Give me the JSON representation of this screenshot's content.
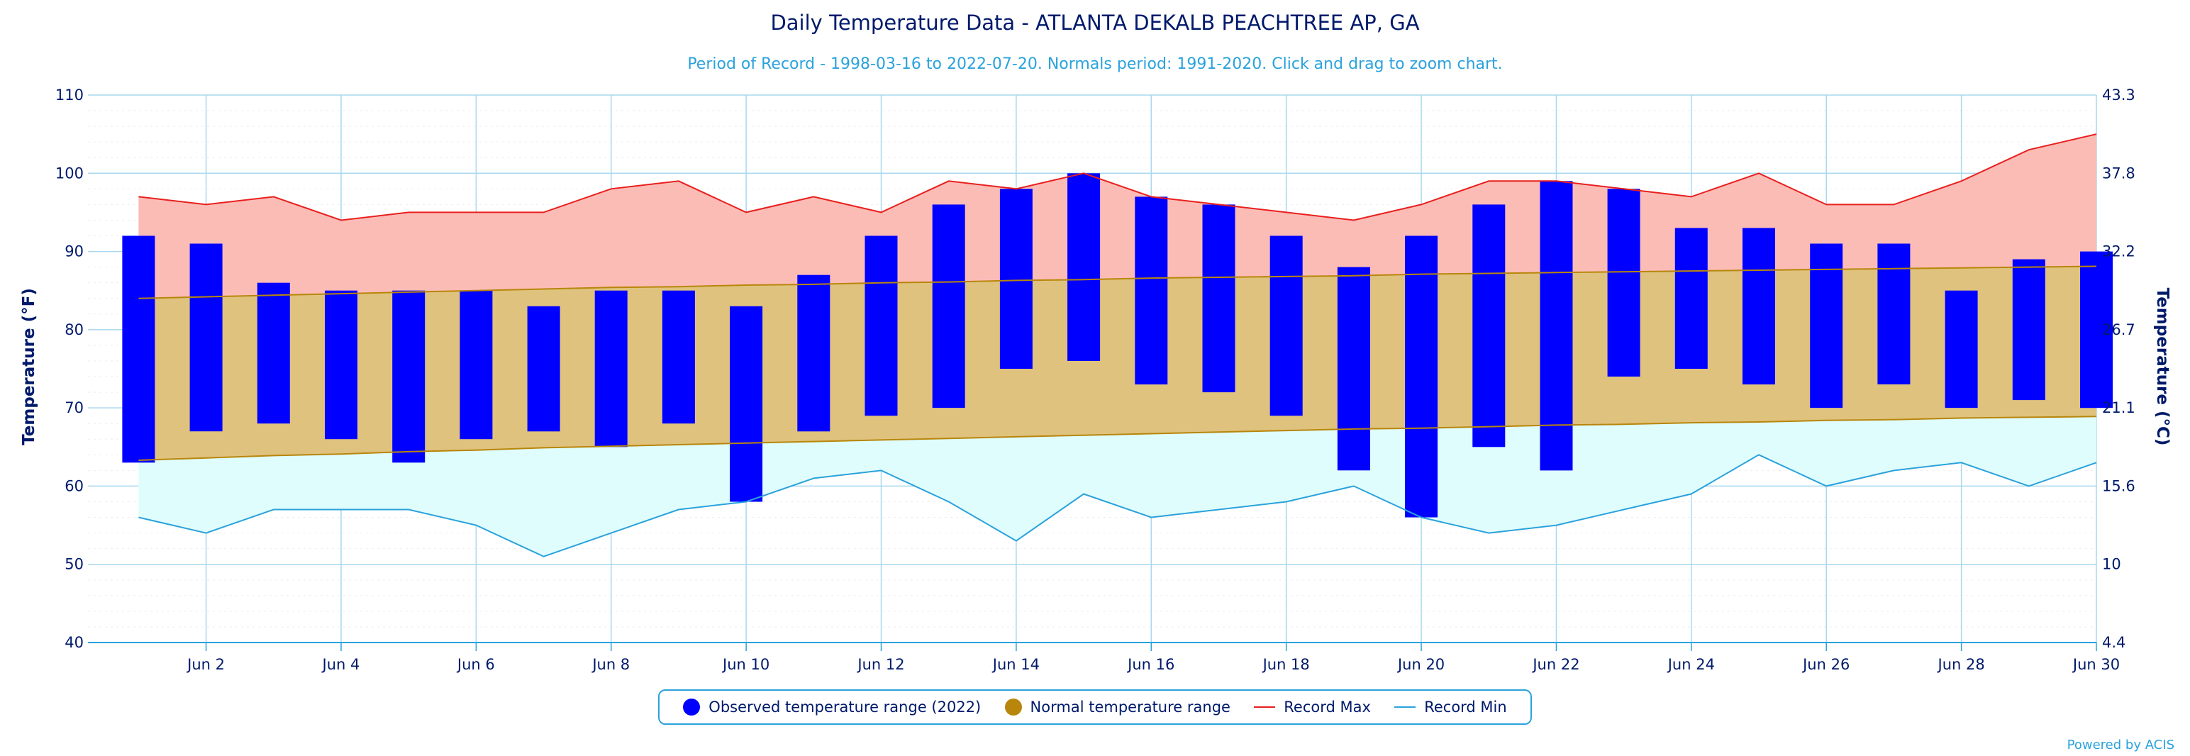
{
  "chart_data": {
    "type": "bar",
    "title": "Daily Temperature Data - ATLANTA DEKALB PEACHTREE AP, GA",
    "subtitle": "Period of Record - 1998-03-16 to 2022-07-20. Normals period: 1991-2020. Click and drag to zoom chart.",
    "ylabel": "Temperature (°F)",
    "ylabel_right": "Temperature (°C)",
    "ylim": [
      40,
      110
    ],
    "y_ticks": [
      "40",
      "50",
      "60",
      "70",
      "80",
      "90",
      "100",
      "110"
    ],
    "y_ticks_right": [
      "4.4",
      "10",
      "15.6",
      "21.1",
      "26.7",
      "32.2",
      "37.8",
      "43.3"
    ],
    "x_days": [
      1,
      2,
      3,
      4,
      5,
      6,
      7,
      8,
      9,
      10,
      11,
      12,
      13,
      14,
      15,
      16,
      17,
      18,
      19,
      20,
      21,
      22,
      23,
      24,
      25,
      26,
      27,
      28,
      29,
      30
    ],
    "x_tick_labels": [
      "Jun 2",
      "Jun 4",
      "Jun 6",
      "Jun 8",
      "Jun 10",
      "Jun 12",
      "Jun 14",
      "Jun 16",
      "Jun 18",
      "Jun 20",
      "Jun 22",
      "Jun 24",
      "Jun 26",
      "Jun 28",
      "Jun 30"
    ],
    "grid": true,
    "legend_position": "bottom",
    "series": [
      {
        "name": "Observed temperature range (2022)",
        "color": "#0000ff",
        "low": [
          63,
          67,
          68,
          66,
          63,
          66,
          67,
          65,
          68,
          58,
          67,
          69,
          70,
          75,
          76,
          73,
          72,
          69,
          62,
          56,
          65,
          62,
          74,
          75,
          73,
          70,
          73,
          70,
          71,
          70
        ],
        "high": [
          92,
          91,
          86,
          85,
          85,
          85,
          83,
          85,
          85,
          83,
          87,
          92,
          96,
          98,
          100,
          97,
          96,
          92,
          88,
          92,
          96,
          99,
          98,
          93,
          93,
          91,
          91,
          85,
          89,
          90
        ]
      },
      {
        "name": "Normal temperature range",
        "color": "#b8860b",
        "fill": "#dfc27d",
        "low": [
          63.3,
          63.6,
          63.9,
          64.1,
          64.4,
          64.6,
          64.9,
          65.1,
          65.3,
          65.5,
          65.7,
          65.9,
          66.1,
          66.3,
          66.5,
          66.7,
          66.9,
          67.1,
          67.3,
          67.4,
          67.6,
          67.8,
          67.9,
          68.1,
          68.2,
          68.4,
          68.5,
          68.7,
          68.8,
          68.9
        ],
        "high": [
          84.0,
          84.2,
          84.4,
          84.6,
          84.8,
          85.0,
          85.2,
          85.4,
          85.5,
          85.7,
          85.8,
          86.0,
          86.1,
          86.3,
          86.4,
          86.6,
          86.7,
          86.8,
          86.9,
          87.1,
          87.2,
          87.3,
          87.4,
          87.5,
          87.6,
          87.7,
          87.8,
          87.9,
          88.0,
          88.1
        ]
      },
      {
        "name": "Record Max",
        "color": "#e8201e",
        "fill": "#fcbcb6",
        "values": [
          97,
          96,
          97,
          94,
          95,
          95,
          95,
          98,
          99,
          95,
          97,
          95,
          99,
          98,
          100,
          97,
          96,
          95,
          94,
          96,
          99,
          99,
          98,
          97,
          100,
          96,
          96,
          99,
          103,
          105
        ]
      },
      {
        "name": "Record Min",
        "color": "#2aa2dc",
        "fill": "#e0fdfd",
        "values": [
          56,
          54,
          57,
          57,
          57,
          55,
          51,
          54,
          57,
          58,
          61,
          62,
          58,
          53,
          59,
          56,
          57,
          58,
          60,
          56,
          54,
          55,
          57,
          59,
          64,
          60,
          62,
          63,
          60,
          63
        ]
      }
    ]
  },
  "credit": "Powered by ACIS"
}
